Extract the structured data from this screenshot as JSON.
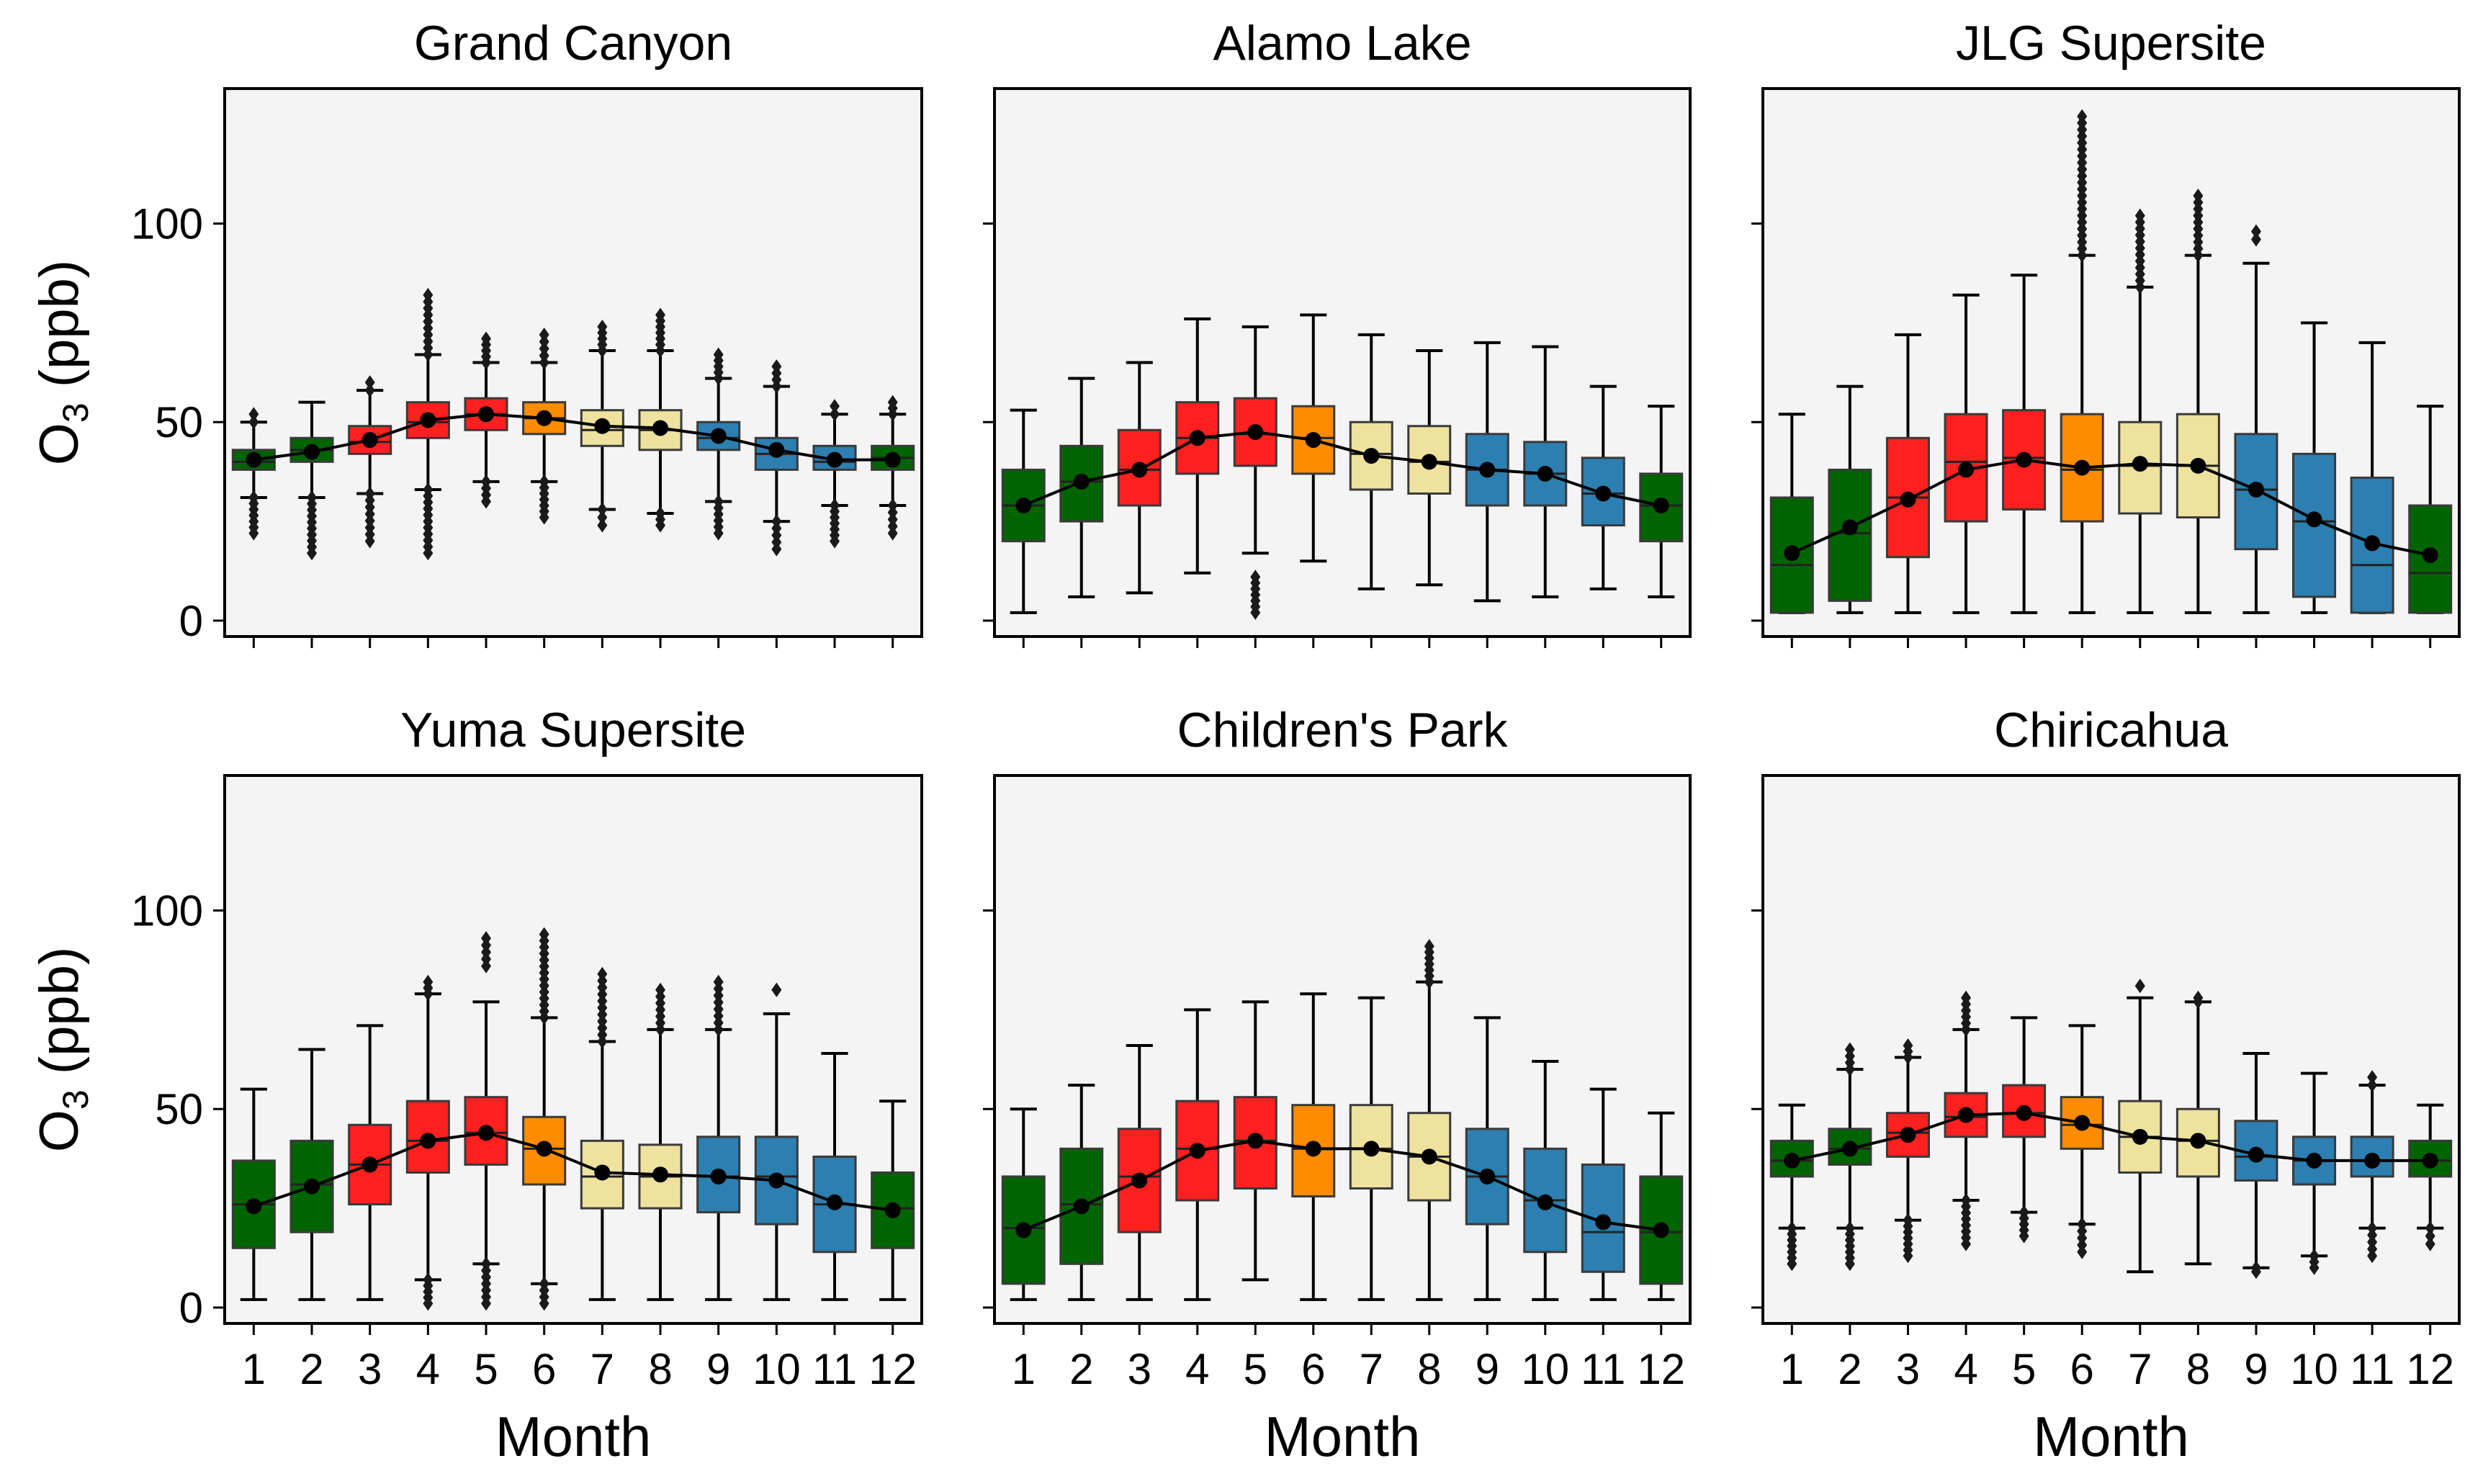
{
  "chart_data": {
    "type": "boxplot",
    "xlabel": "Month",
    "ylabel_main": "O",
    "ylabel_sub": "3",
    "ylabel_unit": " (ppb)",
    "ylim": [
      -4,
      134
    ],
    "yticks": [
      0,
      50,
      100
    ],
    "categories": [
      "1",
      "2",
      "3",
      "4",
      "5",
      "6",
      "7",
      "8",
      "9",
      "10",
      "11",
      "12"
    ],
    "month_colors": [
      "#006400",
      "#006400",
      "#ff2020",
      "#ff2020",
      "#ff2020",
      "#ff8c00",
      "#eee29e",
      "#eee29e",
      "#2c7fb0",
      "#2c7fb0",
      "#2c7fb0",
      "#006400"
    ],
    "background": "#f4f4f4",
    "panels": [
      {
        "title": "Grand Canyon",
        "means": [
          40.5,
          42.5,
          45.5,
          50.5,
          52.0,
          51.0,
          49.0,
          48.5,
          46.5,
          43.0,
          40.5,
          40.5
        ],
        "boxes": [
          {
            "whislo": 31,
            "q1": 38,
            "med": 40,
            "q3": 43,
            "whishi": 50,
            "fliers_lo": [
              22,
              31
            ],
            "fliers_hi": [
              50,
              52
            ]
          },
          {
            "whislo": 31,
            "q1": 40,
            "med": 43,
            "q3": 46,
            "whishi": 55,
            "fliers_lo": [
              17,
              31
            ],
            "fliers_hi": []
          },
          {
            "whislo": 32,
            "q1": 42,
            "med": 45,
            "q3": 49,
            "whishi": 58,
            "fliers_lo": [
              20,
              32
            ],
            "fliers_hi": [
              58,
              60
            ]
          },
          {
            "whislo": 33,
            "q1": 46,
            "med": 50,
            "q3": 55,
            "whishi": 67,
            "fliers_lo": [
              17,
              33
            ],
            "fliers_hi": [
              67,
              82
            ]
          },
          {
            "whislo": 35,
            "q1": 48,
            "med": 52,
            "q3": 56,
            "whishi": 65,
            "fliers_lo": [
              30,
              35
            ],
            "fliers_hi": [
              65,
              71
            ]
          },
          {
            "whislo": 35,
            "q1": 47,
            "med": 51,
            "q3": 55,
            "whishi": 65,
            "fliers_lo": [
              26,
              35
            ],
            "fliers_hi": [
              65,
              72
            ]
          },
          {
            "whislo": 28,
            "q1": 44,
            "med": 48,
            "q3": 53,
            "whishi": 68,
            "fliers_lo": [
              24,
              28
            ],
            "fliers_hi": [
              68,
              74
            ]
          },
          {
            "whislo": 27,
            "q1": 43,
            "med": 48,
            "q3": 53,
            "whishi": 68,
            "fliers_lo": [
              24,
              27
            ],
            "fliers_hi": [
              68,
              77
            ]
          },
          {
            "whislo": 30,
            "q1": 43,
            "med": 46,
            "q3": 50,
            "whishi": 61,
            "fliers_lo": [
              22,
              30
            ],
            "fliers_hi": [
              61,
              67
            ]
          },
          {
            "whislo": 25,
            "q1": 38,
            "med": 42,
            "q3": 46,
            "whishi": 59,
            "fliers_lo": [
              18,
              25
            ],
            "fliers_hi": [
              59,
              64
            ]
          },
          {
            "whislo": 29,
            "q1": 38,
            "med": 40,
            "q3": 44,
            "whishi": 52,
            "fliers_lo": [
              20,
              29
            ],
            "fliers_hi": [
              52,
              54
            ]
          },
          {
            "whislo": 29,
            "q1": 38,
            "med": 41,
            "q3": 44,
            "whishi": 52,
            "fliers_lo": [
              22,
              29
            ],
            "fliers_hi": [
              52,
              55
            ]
          }
        ]
      },
      {
        "title": "Alamo Lake",
        "means": [
          29,
          35,
          38,
          46,
          47.5,
          45.5,
          41.5,
          40,
          38,
          37,
          32,
          29
        ],
        "boxes": [
          {
            "whislo": 2,
            "q1": 20,
            "med": 29,
            "q3": 38,
            "whishi": 53,
            "fliers_lo": [],
            "fliers_hi": []
          },
          {
            "whislo": 6,
            "q1": 25,
            "med": 35,
            "q3": 44,
            "whishi": 61,
            "fliers_lo": [],
            "fliers_hi": []
          },
          {
            "whislo": 7,
            "q1": 29,
            "med": 38,
            "q3": 48,
            "whishi": 65,
            "fliers_lo": [],
            "fliers_hi": []
          },
          {
            "whislo": 12,
            "q1": 37,
            "med": 46,
            "q3": 55,
            "whishi": 76,
            "fliers_lo": [],
            "fliers_hi": []
          },
          {
            "whislo": 17,
            "q1": 39,
            "med": 47,
            "q3": 56,
            "whishi": 74,
            "fliers_lo": [
              2,
              11
            ],
            "fliers_hi": []
          },
          {
            "whislo": 15,
            "q1": 37,
            "med": 46,
            "q3": 54,
            "whishi": 77,
            "fliers_lo": [],
            "fliers_hi": []
          },
          {
            "whislo": 8,
            "q1": 33,
            "med": 42,
            "q3": 50,
            "whishi": 72,
            "fliers_lo": [],
            "fliers_hi": []
          },
          {
            "whislo": 9,
            "q1": 32,
            "med": 40,
            "q3": 49,
            "whishi": 68,
            "fliers_lo": [],
            "fliers_hi": []
          },
          {
            "whislo": 5,
            "q1": 29,
            "med": 38,
            "q3": 47,
            "whishi": 70,
            "fliers_lo": [],
            "fliers_hi": []
          },
          {
            "whislo": 6,
            "q1": 29,
            "med": 37,
            "q3": 45,
            "whishi": 69,
            "fliers_lo": [],
            "fliers_hi": []
          },
          {
            "whislo": 8,
            "q1": 24,
            "med": 32,
            "q3": 41,
            "whishi": 59,
            "fliers_lo": [],
            "fliers_hi": []
          },
          {
            "whislo": 6,
            "q1": 20,
            "med": 29,
            "q3": 37,
            "whishi": 54,
            "fliers_lo": [],
            "fliers_hi": []
          }
        ]
      },
      {
        "title": "JLG Supersite",
        "means": [
          17,
          23.5,
          30.5,
          38,
          40.5,
          38.5,
          39.5,
          39,
          33,
          25.5,
          19.5,
          16.5
        ],
        "boxes": [
          {
            "whislo": 2,
            "q1": 2,
            "med": 14,
            "q3": 31,
            "whishi": 52,
            "fliers_lo": [],
            "fliers_hi": []
          },
          {
            "whislo": 2,
            "q1": 5,
            "med": 22,
            "q3": 38,
            "whishi": 59,
            "fliers_lo": [],
            "fliers_hi": []
          },
          {
            "whislo": 2,
            "q1": 16,
            "med": 31,
            "q3": 46,
            "whishi": 72,
            "fliers_lo": [],
            "fliers_hi": []
          },
          {
            "whislo": 2,
            "q1": 25,
            "med": 40,
            "q3": 52,
            "whishi": 82,
            "fliers_lo": [],
            "fliers_hi": []
          },
          {
            "whislo": 2,
            "q1": 28,
            "med": 41,
            "q3": 53,
            "whishi": 87,
            "fliers_lo": [],
            "fliers_hi": []
          },
          {
            "whislo": 2,
            "q1": 25,
            "med": 38,
            "q3": 52,
            "whishi": 92,
            "fliers_lo": [],
            "fliers_hi": [
              92,
              127
            ]
          },
          {
            "whislo": 2,
            "q1": 27,
            "med": 39,
            "q3": 50,
            "whishi": 84,
            "fliers_lo": [],
            "fliers_hi": [
              84,
              102
            ]
          },
          {
            "whislo": 2,
            "q1": 26,
            "med": 39,
            "q3": 52,
            "whishi": 92,
            "fliers_lo": [],
            "fliers_hi": [
              92,
              107
            ]
          },
          {
            "whislo": 2,
            "q1": 18,
            "med": 33,
            "q3": 47,
            "whishi": 90,
            "fliers_lo": [],
            "fliers_hi": [
              96,
              98
            ]
          },
          {
            "whislo": 2,
            "q1": 6,
            "med": 25,
            "q3": 42,
            "whishi": 75,
            "fliers_lo": [],
            "fliers_hi": []
          },
          {
            "whislo": 2,
            "q1": 2,
            "med": 14,
            "q3": 36,
            "whishi": 70,
            "fliers_lo": [],
            "fliers_hi": []
          },
          {
            "whislo": 2,
            "q1": 2,
            "med": 12,
            "q3": 29,
            "whishi": 54,
            "fliers_lo": [],
            "fliers_hi": []
          }
        ]
      },
      {
        "title": "Yuma Supersite",
        "means": [
          25.5,
          30.5,
          36,
          42,
          44,
          40,
          34,
          33.5,
          33,
          32,
          26.5,
          24.5
        ],
        "boxes": [
          {
            "whislo": 2,
            "q1": 15,
            "med": 26,
            "q3": 37,
            "whishi": 55,
            "fliers_lo": [],
            "fliers_hi": []
          },
          {
            "whislo": 2,
            "q1": 19,
            "med": 31,
            "q3": 42,
            "whishi": 65,
            "fliers_lo": [],
            "fliers_hi": []
          },
          {
            "whislo": 2,
            "q1": 26,
            "med": 36,
            "q3": 46,
            "whishi": 71,
            "fliers_lo": [],
            "fliers_hi": []
          },
          {
            "whislo": 7,
            "q1": 34,
            "med": 42,
            "q3": 52,
            "whishi": 79,
            "fliers_lo": [
              1,
              7
            ],
            "fliers_hi": [
              79,
              82
            ]
          },
          {
            "whislo": 11,
            "q1": 36,
            "med": 44,
            "q3": 53,
            "whishi": 77,
            "fliers_lo": [
              1,
              11
            ],
            "fliers_hi": [
              86,
              93
            ]
          },
          {
            "whislo": 6,
            "q1": 31,
            "med": 40,
            "q3": 48,
            "whishi": 73,
            "fliers_lo": [
              1,
              6
            ],
            "fliers_hi": [
              73,
              94
            ]
          },
          {
            "whislo": 2,
            "q1": 25,
            "med": 33,
            "q3": 42,
            "whishi": 67,
            "fliers_lo": [],
            "fliers_hi": [
              67,
              84
            ]
          },
          {
            "whislo": 2,
            "q1": 25,
            "med": 33,
            "q3": 41,
            "whishi": 70,
            "fliers_lo": [],
            "fliers_hi": [
              70,
              80
            ]
          },
          {
            "whislo": 2,
            "q1": 24,
            "med": 33,
            "q3": 43,
            "whishi": 70,
            "fliers_lo": [],
            "fliers_hi": [
              70,
              82
            ]
          },
          {
            "whislo": 2,
            "q1": 21,
            "med": 33,
            "q3": 43,
            "whishi": 74,
            "fliers_lo": [],
            "fliers_hi": [
              80
            ]
          },
          {
            "whislo": 2,
            "q1": 14,
            "med": 26,
            "q3": 38,
            "whishi": 64,
            "fliers_lo": [],
            "fliers_hi": []
          },
          {
            "whislo": 2,
            "q1": 15,
            "med": 25,
            "q3": 34,
            "whishi": 52,
            "fliers_lo": [],
            "fliers_hi": []
          }
        ]
      },
      {
        "title": "Children's Park",
        "means": [
          19.5,
          25.5,
          32,
          39.5,
          42,
          40,
          40,
          38,
          33,
          26.5,
          21.5,
          19.5
        ],
        "boxes": [
          {
            "whislo": 2,
            "q1": 6,
            "med": 20,
            "q3": 33,
            "whishi": 50,
            "fliers_lo": [],
            "fliers_hi": []
          },
          {
            "whislo": 2,
            "q1": 11,
            "med": 26,
            "q3": 40,
            "whishi": 56,
            "fliers_lo": [],
            "fliers_hi": []
          },
          {
            "whislo": 2,
            "q1": 19,
            "med": 33,
            "q3": 45,
            "whishi": 66,
            "fliers_lo": [],
            "fliers_hi": []
          },
          {
            "whislo": 2,
            "q1": 27,
            "med": 40,
            "q3": 52,
            "whishi": 75,
            "fliers_lo": [],
            "fliers_hi": []
          },
          {
            "whislo": 7,
            "q1": 30,
            "med": 42,
            "q3": 53,
            "whishi": 77,
            "fliers_lo": [],
            "fliers_hi": []
          },
          {
            "whislo": 2,
            "q1": 28,
            "med": 40,
            "q3": 51,
            "whishi": 79,
            "fliers_lo": [],
            "fliers_hi": []
          },
          {
            "whislo": 2,
            "q1": 30,
            "med": 40,
            "q3": 51,
            "whishi": 78,
            "fliers_lo": [],
            "fliers_hi": []
          },
          {
            "whislo": 2,
            "q1": 27,
            "med": 38,
            "q3": 49,
            "whishi": 82,
            "fliers_lo": [],
            "fliers_hi": [
              82,
              91
            ]
          },
          {
            "whislo": 2,
            "q1": 21,
            "med": 33,
            "q3": 45,
            "whishi": 73,
            "fliers_lo": [],
            "fliers_hi": []
          },
          {
            "whislo": 2,
            "q1": 14,
            "med": 27,
            "q3": 40,
            "whishi": 62,
            "fliers_lo": [],
            "fliers_hi": []
          },
          {
            "whislo": 2,
            "q1": 9,
            "med": 19,
            "q3": 36,
            "whishi": 55,
            "fliers_lo": [],
            "fliers_hi": []
          },
          {
            "whislo": 2,
            "q1": 6,
            "med": 19,
            "q3": 33,
            "whishi": 49,
            "fliers_lo": [],
            "fliers_hi": []
          }
        ]
      },
      {
        "title": "Chiricahua",
        "means": [
          37,
          40,
          43.5,
          48.5,
          49,
          46.5,
          43,
          42,
          38.5,
          37,
          37,
          37
        ],
        "boxes": [
          {
            "whislo": 20,
            "q1": 33,
            "med": 37,
            "q3": 42,
            "whishi": 51,
            "fliers_lo": [
              11,
              20
            ],
            "fliers_hi": []
          },
          {
            "whislo": 20,
            "q1": 36,
            "med": 40,
            "q3": 45,
            "whishi": 60,
            "fliers_lo": [
              11,
              20
            ],
            "fliers_hi": [
              60,
              65
            ]
          },
          {
            "whislo": 22,
            "q1": 38,
            "med": 44,
            "q3": 49,
            "whishi": 63,
            "fliers_lo": [
              13,
              22
            ],
            "fliers_hi": [
              63,
              66
            ]
          },
          {
            "whislo": 27,
            "q1": 43,
            "med": 48,
            "q3": 54,
            "whishi": 70,
            "fliers_lo": [
              16,
              27
            ],
            "fliers_hi": [
              70,
              78
            ]
          },
          {
            "whislo": 24,
            "q1": 43,
            "med": 49,
            "q3": 56,
            "whishi": 73,
            "fliers_lo": [
              18,
              24
            ],
            "fliers_hi": []
          },
          {
            "whislo": 21,
            "q1": 40,
            "med": 46,
            "q3": 53,
            "whishi": 71,
            "fliers_lo": [
              14,
              21
            ],
            "fliers_hi": []
          },
          {
            "whislo": 9,
            "q1": 34,
            "med": 43,
            "q3": 52,
            "whishi": 78,
            "fliers_lo": [],
            "fliers_hi": [
              81
            ]
          },
          {
            "whislo": 11,
            "q1": 33,
            "med": 42,
            "q3": 50,
            "whishi": 77,
            "fliers_lo": [],
            "fliers_hi": [
              77,
              78
            ]
          },
          {
            "whislo": 10,
            "q1": 32,
            "med": 38,
            "q3": 47,
            "whishi": 64,
            "fliers_lo": [
              9,
              10
            ],
            "fliers_hi": []
          },
          {
            "whislo": 13,
            "q1": 31,
            "med": 37,
            "q3": 43,
            "whishi": 59,
            "fliers_lo": [
              10,
              13
            ],
            "fliers_hi": []
          },
          {
            "whislo": 20,
            "q1": 33,
            "med": 37,
            "q3": 43,
            "whishi": 56,
            "fliers_lo": [
              13,
              20
            ],
            "fliers_hi": [
              56,
              58
            ]
          },
          {
            "whislo": 20,
            "q1": 33,
            "med": 37,
            "q3": 42,
            "whishi": 51,
            "fliers_lo": [
              16,
              20
            ],
            "fliers_hi": []
          }
        ]
      }
    ]
  }
}
